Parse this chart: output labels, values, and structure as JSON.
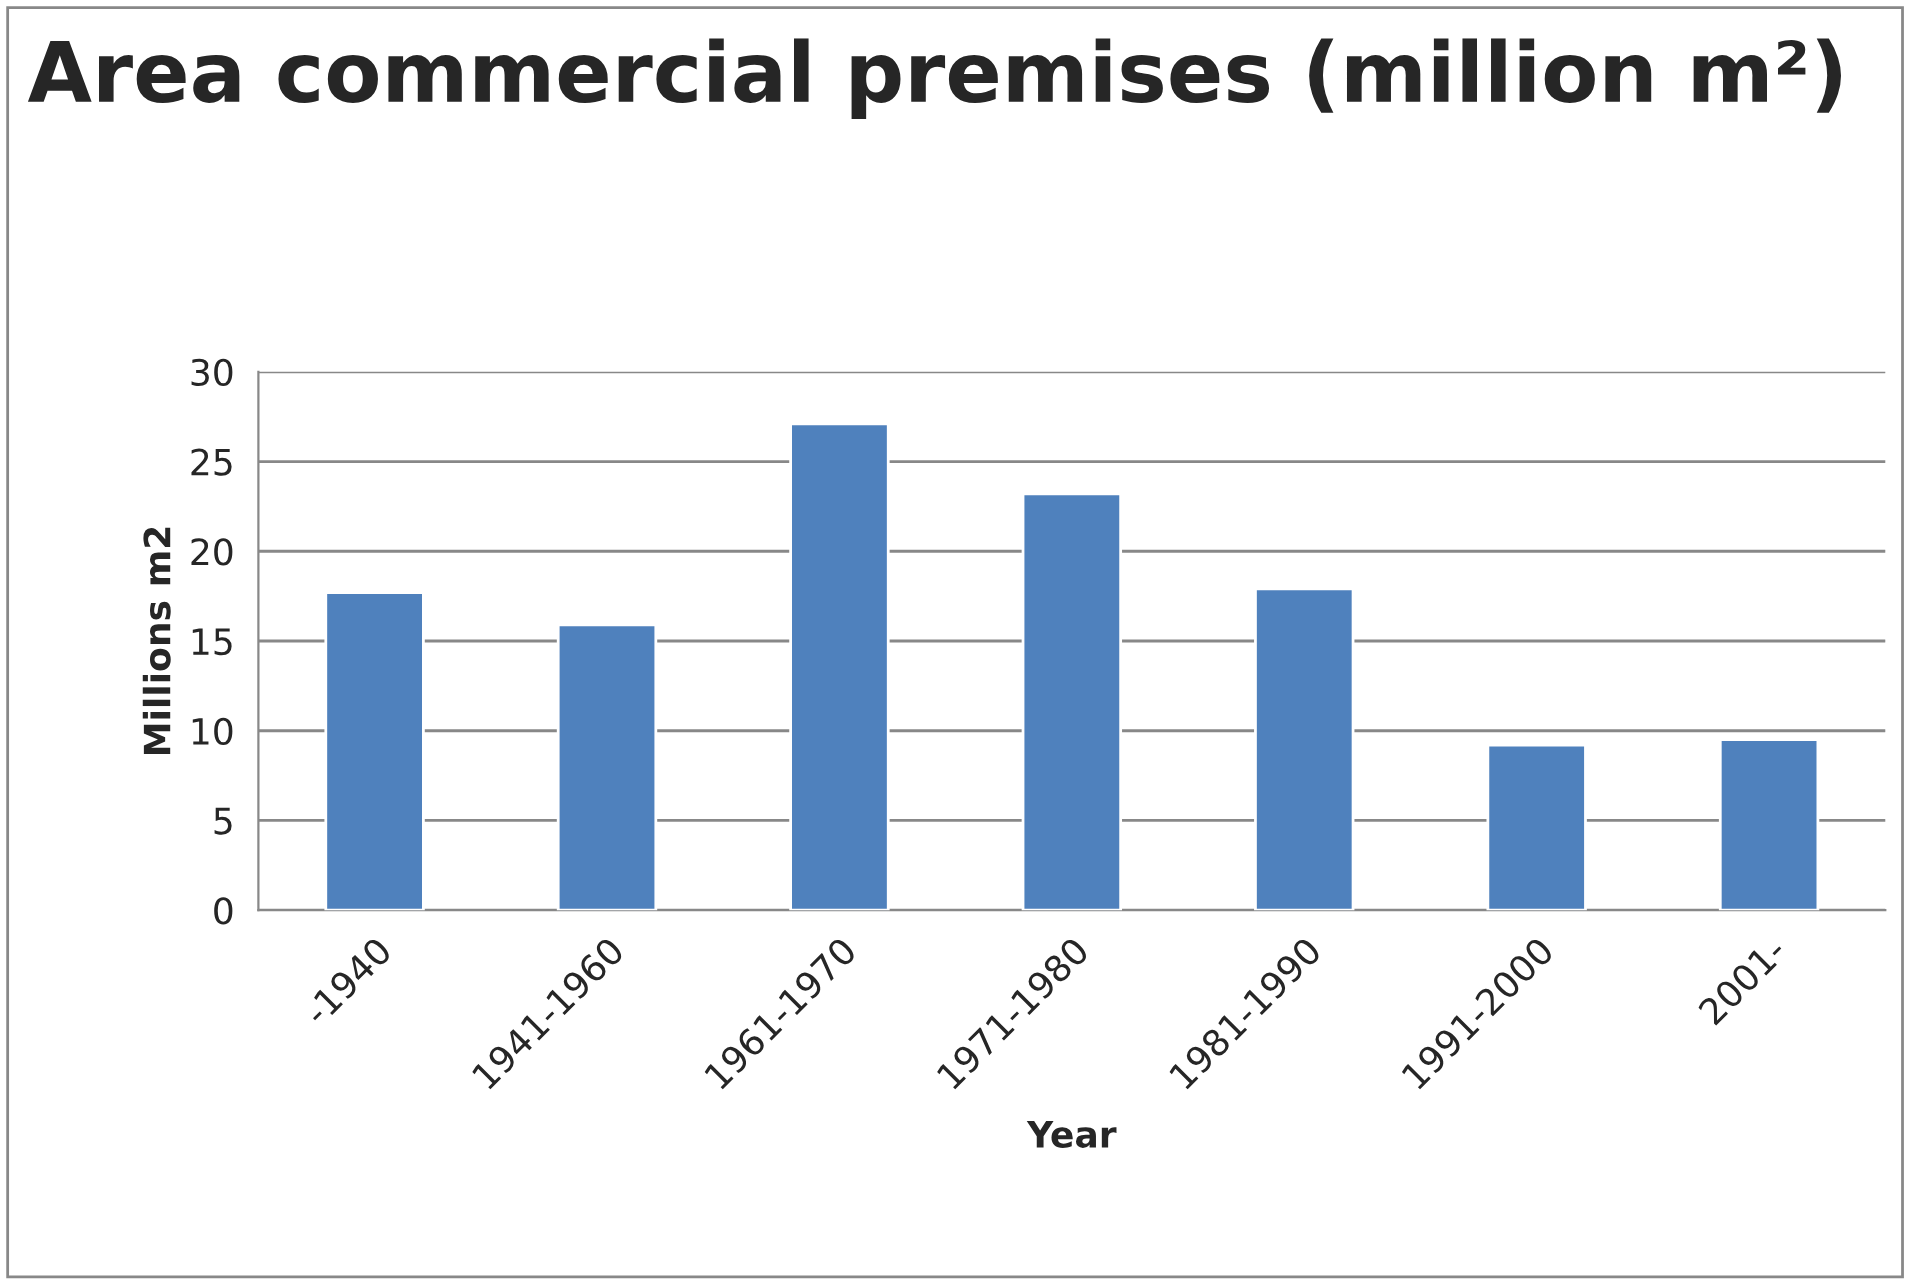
{
  "chart_data": {
    "type": "bar",
    "title": "Area commercial premises (million m²)",
    "xlabel": "Year",
    "ylabel": "Millions m2",
    "categories": [
      "-1940",
      "1941-1960",
      "1961-1970",
      "1971-1980",
      "1981-1990",
      "1991-2000",
      "2001-"
    ],
    "values": [
      17.7,
      15.9,
      27.1,
      23.2,
      17.9,
      9.2,
      9.5
    ],
    "color": "#4f81bd",
    "ylim": [
      0,
      30
    ],
    "yticks": [
      0,
      5,
      10,
      15,
      20,
      25,
      30
    ],
    "grid": "y",
    "legend": false
  }
}
